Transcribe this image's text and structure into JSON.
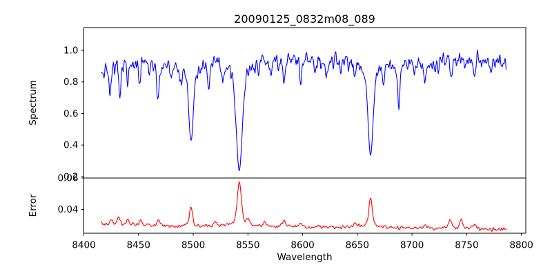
{
  "chart_data": {
    "type": "line",
    "title": "20090125_0832m08_089",
    "xlabel": "Wavelength",
    "xlim": [
      8400,
      8804
    ],
    "x_ticks": [
      8400,
      8450,
      8500,
      8550,
      8600,
      8650,
      8700,
      8750,
      8800
    ],
    "data_x_start": 8416,
    "data_x_end": 8786,
    "data_x_step": 0.5,
    "grid": false,
    "legend": "none",
    "subplots": [
      {
        "name": "spectrum",
        "ylabel": "Spectrum",
        "line_color": "#0000ff",
        "ylim": [
          0.191,
          1.144
        ],
        "y_ticks": [
          0.2,
          0.4,
          0.6,
          0.8,
          1.0
        ],
        "y_tick_labels": [
          "0.2",
          "0.4",
          "0.6",
          "0.8",
          "1.0"
        ],
        "continuum_points": [
          [
            8416,
            0.905
          ],
          [
            8450,
            0.93
          ],
          [
            8500,
            0.935
          ],
          [
            8550,
            0.945
          ],
          [
            8600,
            0.95
          ],
          [
            8650,
            0.945
          ],
          [
            8690,
            0.93
          ],
          [
            8740,
            0.95
          ],
          [
            8786,
            0.925
          ]
        ],
        "noise_sigma": 0.03,
        "absorption_lines_major": [
          {
            "center": 8498.0,
            "depth": 0.5,
            "width": 2.0
          },
          {
            "center": 8542.1,
            "depth": 0.7,
            "width": 2.6
          },
          {
            "center": 8662.1,
            "depth": 0.6,
            "width": 2.2
          }
        ],
        "absorption_lines_minor": [
          [
            8413,
            0.13,
            0.9
          ],
          [
            8424,
            0.21,
            1.0
          ],
          [
            8433,
            0.17,
            0.9
          ],
          [
            8440,
            0.12,
            0.8
          ],
          [
            8451,
            0.13,
            0.8
          ],
          [
            8460,
            0.1,
            0.8
          ],
          [
            8468,
            0.22,
            1.0
          ],
          [
            8480,
            0.12,
            0.8
          ],
          [
            8489,
            0.11,
            0.8
          ],
          [
            8514,
            0.16,
            0.9
          ],
          [
            8527,
            0.13,
            0.8
          ],
          [
            8560,
            0.1,
            0.8
          ],
          [
            8571,
            0.09,
            0.7
          ],
          [
            8583,
            0.13,
            0.9
          ],
          [
            8598,
            0.15,
            0.9
          ],
          [
            8611,
            0.12,
            0.8
          ],
          [
            8622,
            0.13,
            0.8
          ],
          [
            8635,
            0.1,
            0.7
          ],
          [
            8648,
            0.1,
            0.7
          ],
          [
            8674,
            0.12,
            0.8
          ],
          [
            8688,
            0.26,
            1.1
          ],
          [
            8702,
            0.1,
            0.7
          ],
          [
            8712,
            0.14,
            0.9
          ],
          [
            8724,
            0.1,
            0.7
          ],
          [
            8736,
            0.12,
            0.8
          ],
          [
            8757,
            0.13,
            0.9
          ],
          [
            8772,
            0.09,
            0.7
          ]
        ]
      },
      {
        "name": "error",
        "ylabel": "Error",
        "line_color": "#ff0000",
        "ylim": [
          0.0248,
          0.06
        ],
        "y_ticks": [
          0.04,
          0.06
        ],
        "y_tick_labels": [
          "0.04",
          "0.06"
        ],
        "baseline_points": [
          [
            8416,
            0.0302
          ],
          [
            8500,
            0.0293
          ],
          [
            8600,
            0.0287
          ],
          [
            8700,
            0.028
          ],
          [
            8786,
            0.0271
          ]
        ],
        "noise_sigma": 0.0006,
        "spikes_major": [
          {
            "center": 8498.0,
            "height": 0.0115,
            "width": 1.3
          },
          {
            "center": 8542.1,
            "height": 0.0285,
            "width": 1.7
          },
          {
            "center": 8662.1,
            "height": 0.0185,
            "width": 1.5
          }
        ],
        "spikes_minor": [
          [
            8425,
            0.004,
            1.2
          ],
          [
            8432,
            0.0045,
            1.1
          ],
          [
            8440,
            0.004,
            1.1
          ],
          [
            8452,
            0.0035,
            1.1
          ],
          [
            8468,
            0.003,
            1.2
          ],
          [
            8520,
            0.003,
            1.1
          ],
          [
            8550,
            0.003,
            1.2
          ],
          [
            8565,
            0.0025,
            1.1
          ],
          [
            8583,
            0.0045,
            1.2
          ],
          [
            8598,
            0.0025,
            1.1
          ],
          [
            8648,
            0.003,
            1.1
          ],
          [
            8712,
            0.0025,
            1.1
          ],
          [
            8735,
            0.0055,
            1.3
          ],
          [
            8745,
            0.0055,
            1.2
          ],
          [
            8757,
            0.003,
            1.1
          ]
        ]
      }
    ]
  }
}
